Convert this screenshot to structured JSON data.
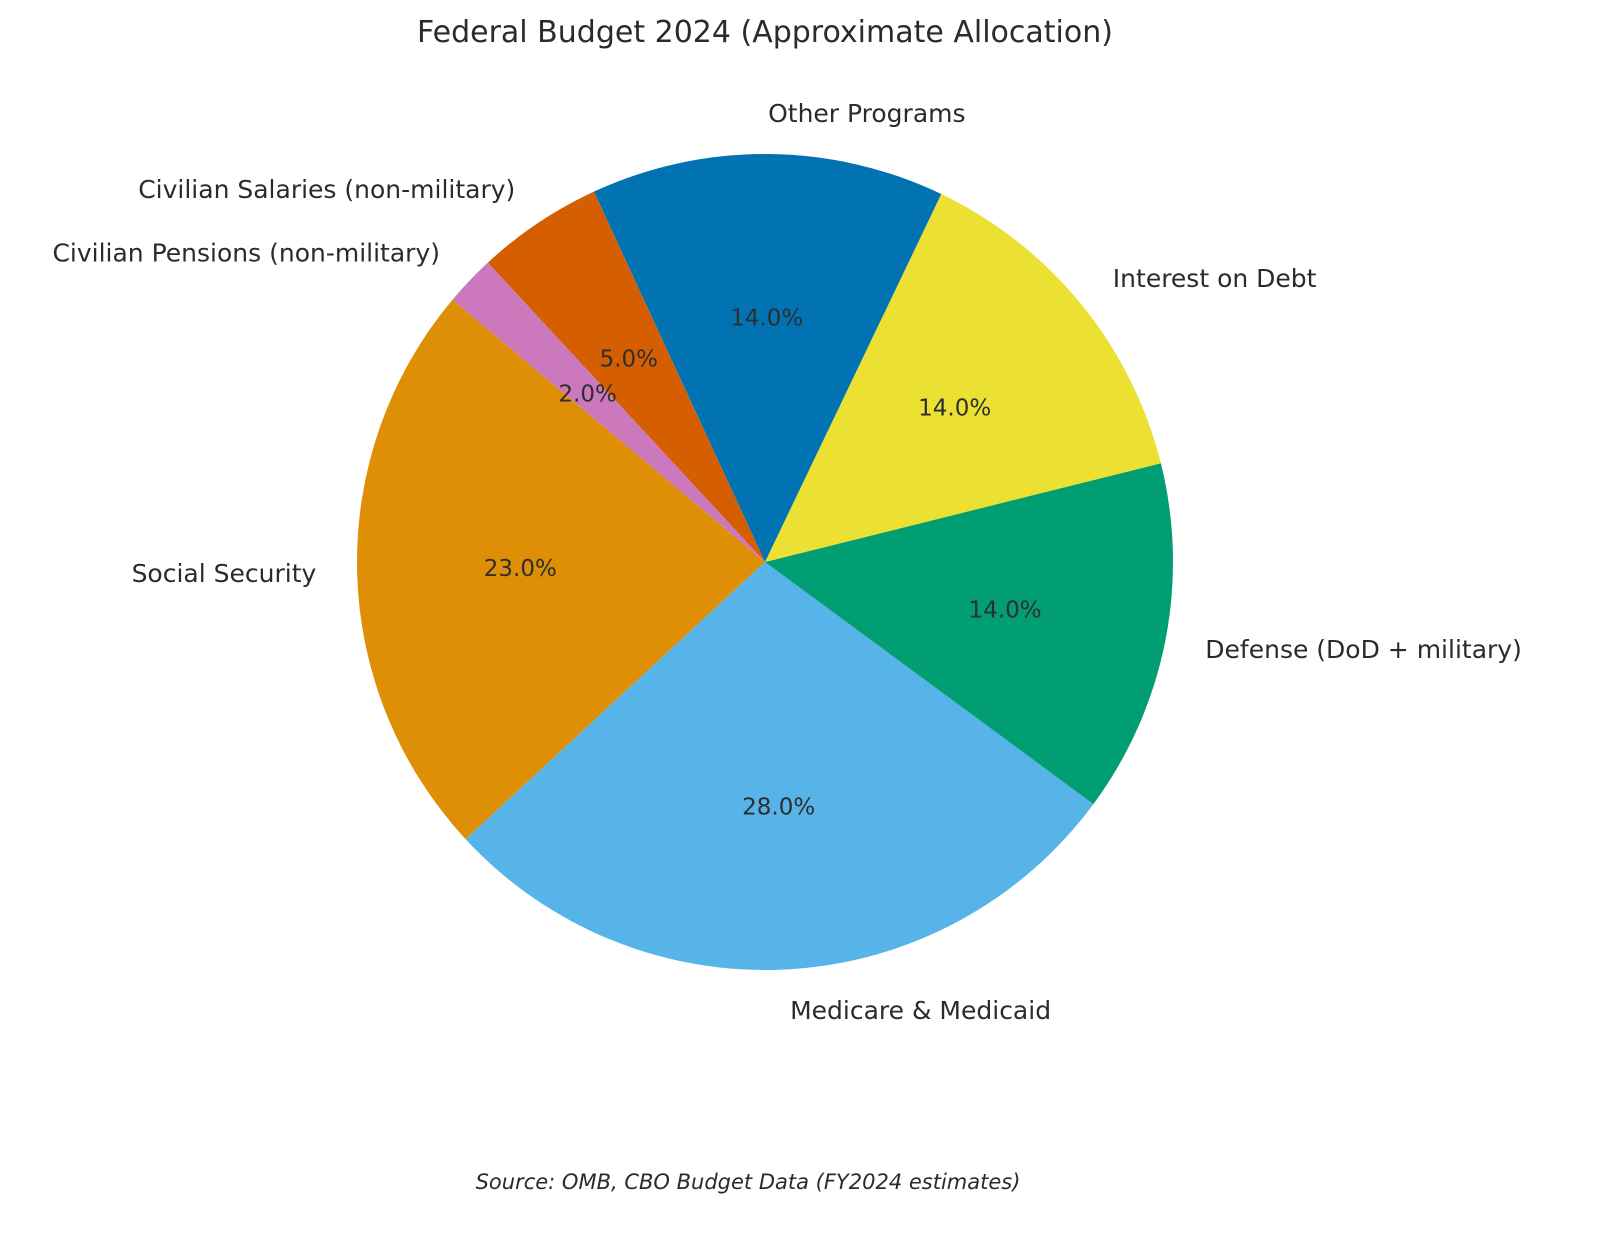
{
  "chart_data": {
    "type": "pie",
    "title": "Federal Budget 2024 (Approximate Allocation)",
    "source": "Source: OMB, CBO Budget Data (FY2024 estimates)",
    "start_angle": 140,
    "counterclockwise": true,
    "pct_distance": 0.6,
    "label_distance": 1.1,
    "center": [
      765,
      562
    ],
    "radius": 408,
    "slices": [
      {
        "id": "social-security",
        "label": "Social Security",
        "value": 23.0,
        "pct_label": "23.0%",
        "color": "#DE8F05"
      },
      {
        "id": "medicare-medicaid",
        "label": "Medicare & Medicaid",
        "value": 28.0,
        "pct_label": "28.0%",
        "color": "#56B4E9"
      },
      {
        "id": "defense",
        "label": "Defense (DoD + military)",
        "value": 14.0,
        "pct_label": "14.0%",
        "color": "#029E73"
      },
      {
        "id": "interest-on-debt",
        "label": "Interest on Debt",
        "value": 14.0,
        "pct_label": "14.0%",
        "color": "#ECE133"
      },
      {
        "id": "other-programs",
        "label": "Other Programs",
        "value": 14.0,
        "pct_label": "14.0%",
        "color": "#0173B2"
      },
      {
        "id": "civilian-salaries",
        "label": "Civilian Salaries (non-military)",
        "value": 5.0,
        "pct_label": "5.0%",
        "color": "#D55E00"
      },
      {
        "id": "civilian-pensions",
        "label": "Civilian Pensions (non-military)",
        "value": 2.0,
        "pct_label": "2.0%",
        "color": "#CC78BC"
      }
    ]
  }
}
